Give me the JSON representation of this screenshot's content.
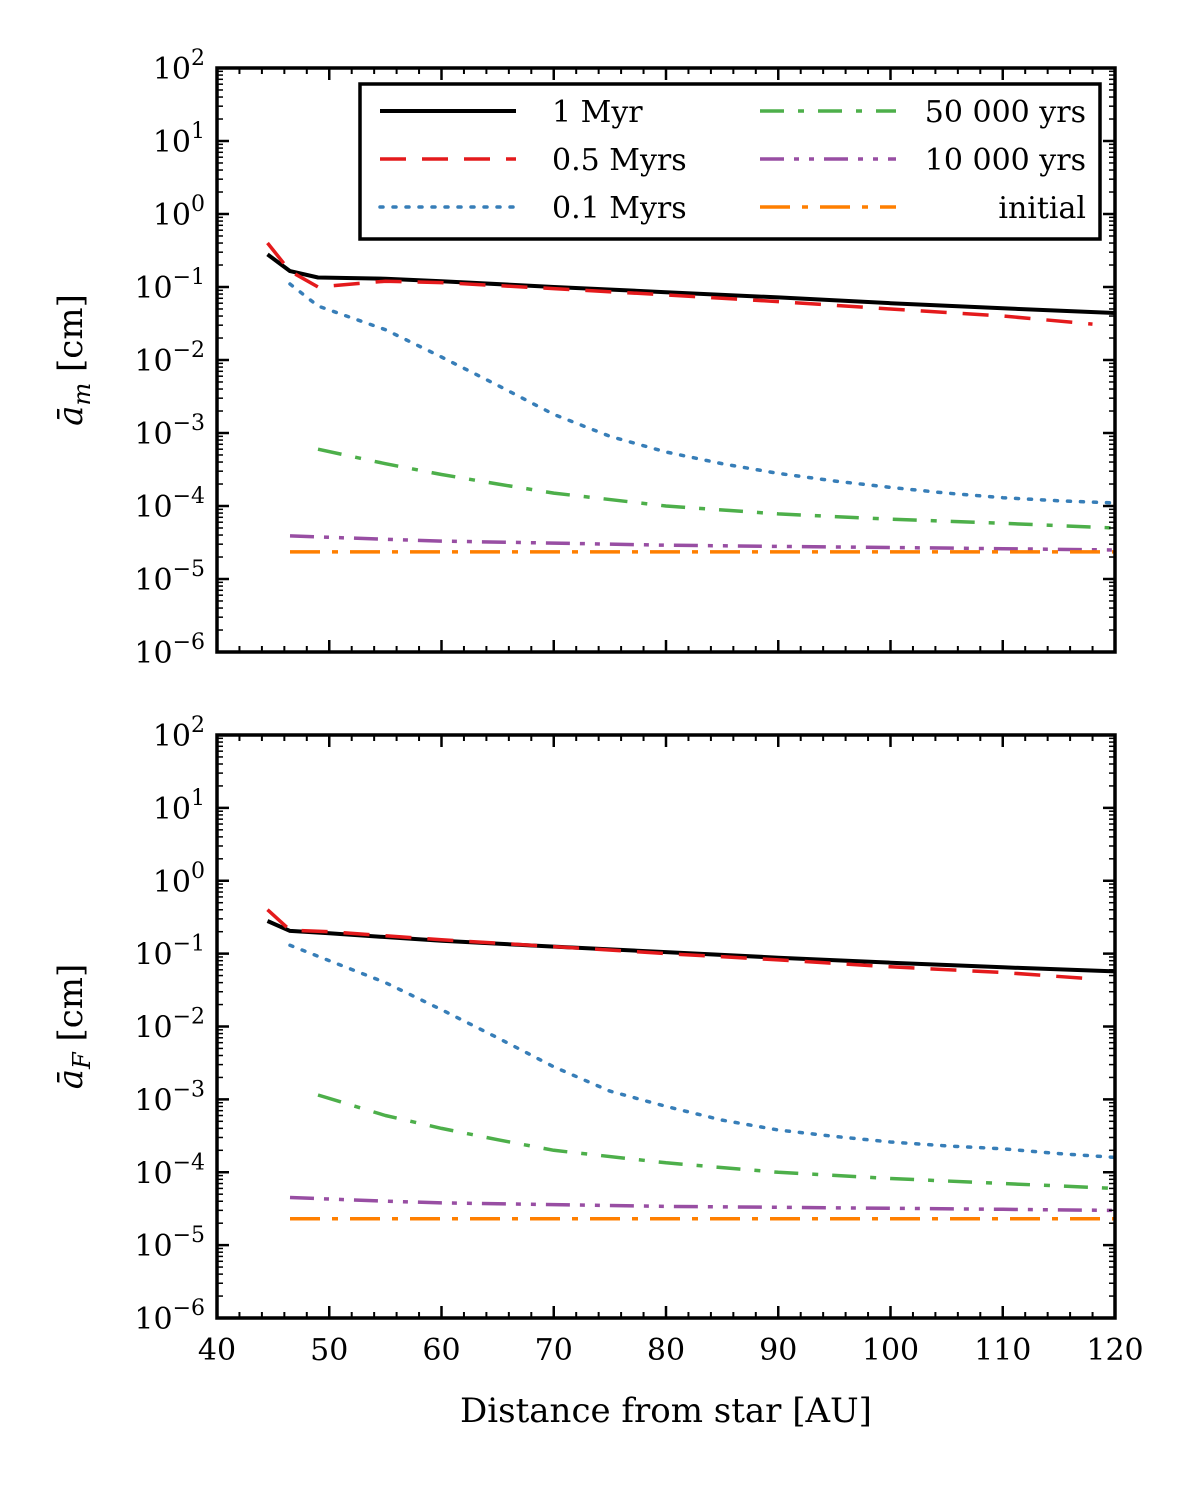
{
  "chart_data": [
    {
      "type": "line",
      "panel": "top",
      "title": "",
      "xlabel": "",
      "ylabel_base": "ā",
      "ylabel_sub": "m",
      "ylabel_unit": " [cm]",
      "xlim": [
        40,
        120
      ],
      "yscale": "log",
      "ylim": [
        1e-06,
        100
      ],
      "xticks": [
        "40",
        "50",
        "60",
        "70",
        "80",
        "90",
        "100",
        "110",
        "120"
      ],
      "show_xtick_labels": false,
      "yticks": [
        {
          "base": "10",
          "exp": "−6",
          "value": 1e-06
        },
        {
          "base": "10",
          "exp": "−5",
          "value": 1e-05
        },
        {
          "base": "10",
          "exp": "−4",
          "value": 0.0001
        },
        {
          "base": "10",
          "exp": "−3",
          "value": 0.001
        },
        {
          "base": "10",
          "exp": "−2",
          "value": 0.01
        },
        {
          "base": "10",
          "exp": "−1",
          "value": 0.1
        },
        {
          "base": "10",
          "exp": "0",
          "value": 1
        },
        {
          "base": "10",
          "exp": "1",
          "value": 10
        },
        {
          "base": "10",
          "exp": "2",
          "value": 100
        }
      ],
      "legend": {
        "location": "upper right",
        "entries": [
          "1 Myr",
          "0.5 Myrs",
          "0.1 Myrs",
          "50 000 yrs",
          "10 000 yrs",
          "initial"
        ]
      },
      "series": [
        {
          "name": "1 Myr",
          "color": "#000000",
          "style": "solid",
          "x": [
            44.5,
            46.5,
            49,
            55,
            60,
            70,
            80,
            90,
            100,
            110,
            120
          ],
          "y": [
            0.28,
            0.165,
            0.135,
            0.13,
            0.12,
            0.1,
            0.085,
            0.072,
            0.06,
            0.051,
            0.044
          ]
        },
        {
          "name": "0.5 Myrs",
          "color": "#e41a1c",
          "style": "dashed",
          "x": [
            44.5,
            46.5,
            49,
            55,
            60,
            70,
            80,
            90,
            100,
            110,
            118
          ],
          "y": [
            0.4,
            0.165,
            0.1,
            0.12,
            0.115,
            0.095,
            0.078,
            0.063,
            0.05,
            0.04,
            0.031
          ]
        },
        {
          "name": "0.1 Myrs",
          "color": "#377eb8",
          "style": "dotted",
          "x": [
            46.5,
            49,
            55,
            60,
            65,
            70,
            75,
            80,
            85,
            90,
            95,
            100,
            105,
            110,
            115,
            120
          ],
          "y": [
            0.11,
            0.055,
            0.026,
            0.011,
            0.0045,
            0.0018,
            0.0009,
            0.00055,
            0.00038,
            0.00028,
            0.00022,
            0.00018,
            0.00015,
            0.00013,
            0.000118,
            0.00011
          ]
        },
        {
          "name": "50 000 yrs",
          "color": "#4daf4a",
          "style": "dashdot",
          "x": [
            49,
            55,
            60,
            65,
            70,
            80,
            90,
            100,
            110,
            120
          ],
          "y": [
            0.0006,
            0.00038,
            0.00027,
            0.0002,
            0.00015,
            0.0001,
            7.8e-05,
            6.6e-05,
            5.8e-05,
            5e-05
          ]
        },
        {
          "name": "10 000 yrs",
          "color": "#984ea3",
          "style": "dashdotdot",
          "x": [
            46.5,
            55,
            60,
            70,
            80,
            90,
            100,
            110,
            120
          ],
          "y": [
            3.9e-05,
            3.5e-05,
            3.3e-05,
            3.1e-05,
            2.9e-05,
            2.8e-05,
            2.7e-05,
            2.6e-05,
            2.5e-05
          ]
        },
        {
          "name": "initial",
          "color": "#ff7f00",
          "style": "longdashdot",
          "x": [
            46.5,
            120
          ],
          "y": [
            2.35e-05,
            2.35e-05
          ]
        }
      ]
    },
    {
      "type": "line",
      "panel": "bottom",
      "title": "",
      "xlabel": "Distance from star [AU]",
      "ylabel_base": "ā",
      "ylabel_sub": "F",
      "ylabel_unit": " [cm]",
      "xlim": [
        40,
        120
      ],
      "yscale": "log",
      "ylim": [
        1e-06,
        100
      ],
      "xticks": [
        "40",
        "50",
        "60",
        "70",
        "80",
        "90",
        "100",
        "110",
        "120"
      ],
      "show_xtick_labels": true,
      "yticks": [
        {
          "base": "10",
          "exp": "−6",
          "value": 1e-06
        },
        {
          "base": "10",
          "exp": "−5",
          "value": 1e-05
        },
        {
          "base": "10",
          "exp": "−4",
          "value": 0.0001
        },
        {
          "base": "10",
          "exp": "−3",
          "value": 0.001
        },
        {
          "base": "10",
          "exp": "−2",
          "value": 0.01
        },
        {
          "base": "10",
          "exp": "−1",
          "value": 0.1
        },
        {
          "base": "10",
          "exp": "0",
          "value": 1
        },
        {
          "base": "10",
          "exp": "1",
          "value": 10
        },
        {
          "base": "10",
          "exp": "2",
          "value": 100
        }
      ],
      "series": [
        {
          "name": "1 Myr",
          "color": "#000000",
          "style": "solid",
          "x": [
            44.5,
            46.5,
            50,
            60,
            70,
            80,
            90,
            100,
            110,
            120
          ],
          "y": [
            0.28,
            0.205,
            0.19,
            0.15,
            0.125,
            0.105,
            0.088,
            0.075,
            0.065,
            0.057
          ]
        },
        {
          "name": "0.5 Myrs",
          "color": "#e41a1c",
          "style": "dashed",
          "x": [
            44.5,
            46.5,
            50,
            60,
            70,
            80,
            90,
            100,
            110,
            118
          ],
          "y": [
            0.4,
            0.21,
            0.2,
            0.155,
            0.125,
            0.1,
            0.082,
            0.066,
            0.055,
            0.045
          ]
        },
        {
          "name": "0.1 Myrs",
          "color": "#377eb8",
          "style": "dotted",
          "x": [
            46.5,
            50,
            55,
            60,
            65,
            70,
            75,
            80,
            85,
            90,
            95,
            100,
            105,
            110,
            115,
            120
          ],
          "y": [
            0.13,
            0.08,
            0.04,
            0.017,
            0.007,
            0.0028,
            0.0013,
            0.0008,
            0.00052,
            0.00038,
            0.00031,
            0.00026,
            0.00023,
            0.00021,
            0.00018,
            0.00016
          ]
        },
        {
          "name": "50 000 yrs",
          "color": "#4daf4a",
          "style": "dashdot",
          "x": [
            49,
            55,
            60,
            65,
            70,
            80,
            90,
            100,
            110,
            120
          ],
          "y": [
            0.00115,
            0.0006,
            0.0004,
            0.00028,
            0.0002,
            0.000135,
            0.0001,
            8.2e-05,
            7e-05,
            6e-05
          ]
        },
        {
          "name": "10 000 yrs",
          "color": "#984ea3",
          "style": "dashdotdot",
          "x": [
            46.5,
            55,
            60,
            70,
            80,
            90,
            100,
            110,
            120
          ],
          "y": [
            4.5e-05,
            4e-05,
            3.8e-05,
            3.6e-05,
            3.4e-05,
            3.3e-05,
            3.2e-05,
            3.1e-05,
            3e-05
          ]
        },
        {
          "name": "initial",
          "color": "#ff7f00",
          "style": "longdashdot",
          "x": [
            46.5,
            120
          ],
          "y": [
            2.3e-05,
            2.3e-05
          ]
        }
      ]
    }
  ]
}
